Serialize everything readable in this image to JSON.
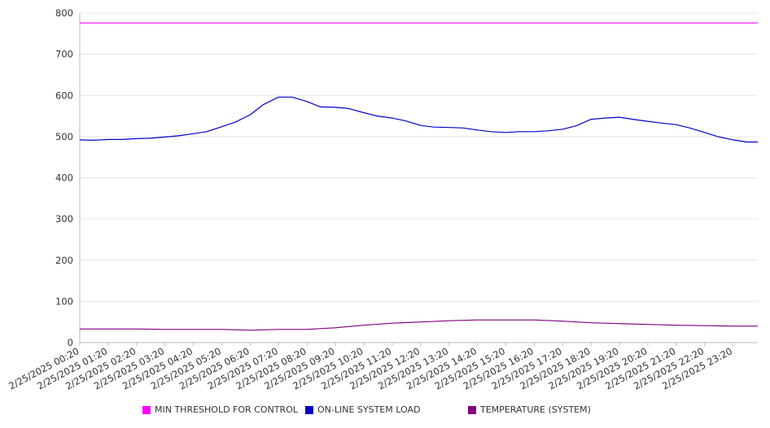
{
  "chart_data": {
    "type": "line",
    "y_ticks": [
      0,
      100,
      200,
      300,
      400,
      500,
      600,
      700,
      800
    ],
    "ylim": [
      0,
      800
    ],
    "x_tick_labels": [
      "2/25/2025 00:20",
      "2/25/2025 01:20",
      "2/25/2025 02:20",
      "2/25/2025 03:20",
      "2/25/2025 04:20",
      "2/25/2025 05:20",
      "2/25/2025 06:20",
      "2/25/2025 07:20",
      "2/25/2025 08:20",
      "2/25/2025 09:20",
      "2/25/2025 10:20",
      "2/25/2025 11:20",
      "2/25/2025 12:20",
      "2/25/2025 13:20",
      "2/25/2025 14:20",
      "2/25/2025 15:20",
      "2/25/2025 16:20",
      "2/25/2025 17:20",
      "2/25/2025 18:20",
      "2/25/2025 19:20",
      "2/25/2025 20:20",
      "2/25/2025 21:20",
      "2/25/2025 22:20",
      "2/25/2025 23:20"
    ],
    "x_hours": [
      0.33,
      1.33,
      2.33,
      3.33,
      4.33,
      5.33,
      6.33,
      7.33,
      8.33,
      9.33,
      10.33,
      11.33,
      12.33,
      13.33,
      14.33,
      15.33,
      16.33,
      17.33,
      18.33,
      19.33,
      20.33,
      21.33,
      22.33,
      23.33
    ],
    "xlim_hours": [
      0.33,
      24.2
    ],
    "grid": true,
    "legend_position": "bottom",
    "series": [
      {
        "name": "MIN THRESHOLD FOR CONTROL",
        "color": "#ff00ff",
        "x": [
          0.33,
          24.2
        ],
        "values": [
          776,
          776
        ]
      },
      {
        "name": "ON-LINE SYSTEM LOAD",
        "color": "#0000cc",
        "x": [
          0.33,
          0.8,
          1.33,
          1.8,
          2.33,
          2.8,
          3.33,
          3.8,
          4.33,
          4.8,
          5.33,
          5.8,
          6.33,
          6.8,
          7.33,
          7.8,
          8.33,
          8.8,
          9.33,
          9.8,
          10.33,
          10.8,
          11.33,
          11.8,
          12.33,
          12.8,
          13.33,
          13.8,
          14.33,
          14.8,
          15.33,
          15.8,
          16.33,
          16.8,
          17.33,
          17.8,
          18.33,
          18.8,
          19.33,
          19.8,
          20.33,
          20.8,
          21.33,
          21.8,
          22.33,
          22.8,
          23.33,
          23.8,
          24.2
        ],
        "values": [
          492,
          491,
          493,
          493,
          495,
          496,
          499,
          502,
          507,
          512,
          524,
          535,
          553,
          578,
          596,
          596,
          585,
          572,
          571,
          568,
          558,
          550,
          545,
          538,
          527,
          523,
          522,
          521,
          516,
          512,
          510,
          512,
          512,
          514,
          518,
          526,
          542,
          545,
          547,
          542,
          537,
          533,
          529,
          521,
          510,
          500,
          492,
          487,
          487
        ]
      },
      {
        "name": "TEMPERATURE (SYSTEM)",
        "color": "#800080",
        "x": [
          0.33,
          1.33,
          2.33,
          3.33,
          4.33,
          5.33,
          6.33,
          7.33,
          8.33,
          9.33,
          10.33,
          11.33,
          12.33,
          13.33,
          14.33,
          15.33,
          16.33,
          17.33,
          18.33,
          19.33,
          20.33,
          21.33,
          22.33,
          23.33,
          24.2
        ],
        "values": [
          33,
          33,
          33,
          32,
          32,
          32,
          30,
          32,
          32,
          36,
          42,
          47,
          50,
          53,
          55,
          55,
          55,
          52,
          48,
          46,
          44,
          42,
          41,
          40,
          40
        ]
      }
    ]
  }
}
